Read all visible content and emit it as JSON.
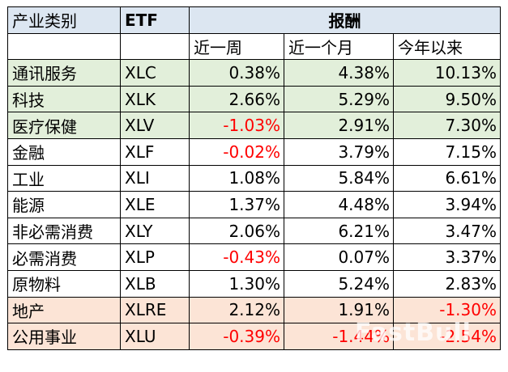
{
  "header": {
    "col_sector": "产业类别",
    "col_etf": "ETF",
    "col_returns": "报酬",
    "sub_week": "近一周",
    "sub_month": "近一个月",
    "sub_ytd": "今年以来"
  },
  "colors": {
    "negative": "#ff0000",
    "header_bg": "#dce6f1",
    "top_bg": "#e2efda",
    "bottom_bg": "#fce4d6"
  },
  "rows": [
    {
      "sector": "通讯服务",
      "etf": "XLC",
      "week": "0.38%",
      "month": "4.38%",
      "ytd": "10.13%"
    },
    {
      "sector": "科技",
      "etf": "XLK",
      "week": "2.66%",
      "month": "5.29%",
      "ytd": "9.50%"
    },
    {
      "sector": "医疗保健",
      "etf": "XLV",
      "week": "-1.03%",
      "month": "2.91%",
      "ytd": "7.30%"
    },
    {
      "sector": "金融",
      "etf": "XLF",
      "week": "-0.02%",
      "month": "3.79%",
      "ytd": "7.15%"
    },
    {
      "sector": "工业",
      "etf": "XLI",
      "week": "1.08%",
      "month": "5.84%",
      "ytd": "6.61%"
    },
    {
      "sector": "能源",
      "etf": "XLE",
      "week": "1.37%",
      "month": "4.48%",
      "ytd": "3.94%"
    },
    {
      "sector": "非必需消费",
      "etf": "XLY",
      "week": "2.06%",
      "month": "6.21%",
      "ytd": "3.47%"
    },
    {
      "sector": "必需消费",
      "etf": "XLP",
      "week": "-0.43%",
      "month": "0.07%",
      "ytd": "3.37%"
    },
    {
      "sector": "原物料",
      "etf": "XLB",
      "week": "1.30%",
      "month": "5.24%",
      "ytd": "2.83%"
    },
    {
      "sector": "地产",
      "etf": "XLRE",
      "week": "2.12%",
      "month": "1.91%",
      "ytd": "-1.30%"
    },
    {
      "sector": "公用事业",
      "etf": "XLU",
      "week": "-0.39%",
      "month": "-1.44%",
      "ytd": "-2.54%"
    }
  ],
  "watermark": "FastBull"
}
